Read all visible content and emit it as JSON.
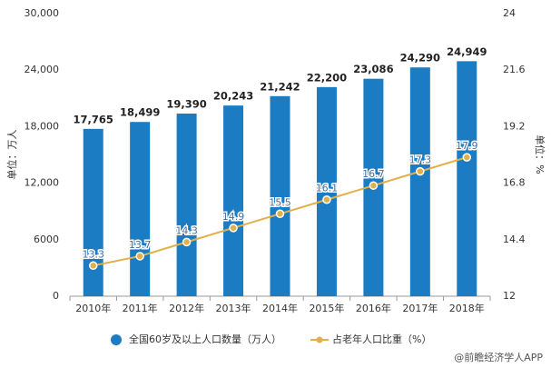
{
  "chart_data": {
    "type": "bar-line",
    "categories": [
      "2010年",
      "2011年",
      "2012年",
      "2013年",
      "2014年",
      "2015年",
      "2016年",
      "2017年",
      "2018年"
    ],
    "series": [
      {
        "name": "全国60岁及以上人口数量（万人）",
        "type": "bar",
        "color": "#1b7cc3",
        "values": [
          17765,
          18499,
          19390,
          20243,
          21242,
          22200,
          23086,
          24290,
          24949
        ],
        "value_labels": [
          "17,765",
          "18,499",
          "19,390",
          "20,243",
          "21,242",
          "22,200",
          "23,086",
          "24,290",
          "24,949"
        ]
      },
      {
        "name": "占老年人口比重（%）",
        "type": "line",
        "axis": "y2",
        "color": "#e2b04a",
        "values": [
          13.3,
          13.7,
          14.3,
          14.9,
          15.5,
          16.1,
          16.7,
          17.3,
          17.9
        ]
      }
    ],
    "ylabel": "单位：万人",
    "y2label": "单位：%",
    "ylim": [
      0,
      30000
    ],
    "yticks": [
      0,
      6000,
      {
        "value": 12000,
        "label": "12,000"
      },
      {
        "value": 18000,
        "label": "18,000"
      },
      {
        "value": 24000,
        "label": "24,000"
      },
      {
        "value": 30000,
        "label": "30,000"
      }
    ],
    "y2lim": [
      12,
      24
    ],
    "y2ticks": [
      12,
      14.4,
      16.8,
      19.2,
      21.6,
      24
    ],
    "grid": false,
    "legend": "bottom",
    "source": "@前瞻经济学人APP"
  }
}
